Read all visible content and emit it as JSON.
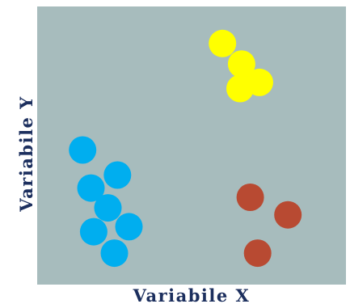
{
  "chart_data": {
    "type": "scatter",
    "title": "",
    "xlabel": "Variabile X",
    "ylabel": "Variabile Y",
    "xlim": [
      0,
      10
    ],
    "ylim": [
      0,
      10
    ],
    "grid": false,
    "legend": "none",
    "colors": {
      "background": "#a7bcbd",
      "label": "#1c2f5e"
    },
    "series": [
      {
        "color": "#00aeef",
        "points": [
          {
            "x": 1.47,
            "y": 4.84
          },
          {
            "x": 2.6,
            "y": 3.94
          },
          {
            "x": 1.74,
            "y": 3.47
          },
          {
            "x": 2.29,
            "y": 2.76
          },
          {
            "x": 1.83,
            "y": 1.9
          },
          {
            "x": 2.97,
            "y": 2.08
          },
          {
            "x": 2.5,
            "y": 1.13
          }
        ]
      },
      {
        "color": "#ffff00",
        "points": [
          {
            "x": 6.0,
            "y": 8.67
          },
          {
            "x": 6.62,
            "y": 7.93
          },
          {
            "x": 7.2,
            "y": 7.27
          },
          {
            "x": 6.57,
            "y": 7.05
          }
        ]
      },
      {
        "color": "#b84a32",
        "points": [
          {
            "x": 6.9,
            "y": 3.14
          },
          {
            "x": 8.12,
            "y": 2.51
          },
          {
            "x": 7.14,
            "y": 1.13
          }
        ]
      }
    ]
  }
}
